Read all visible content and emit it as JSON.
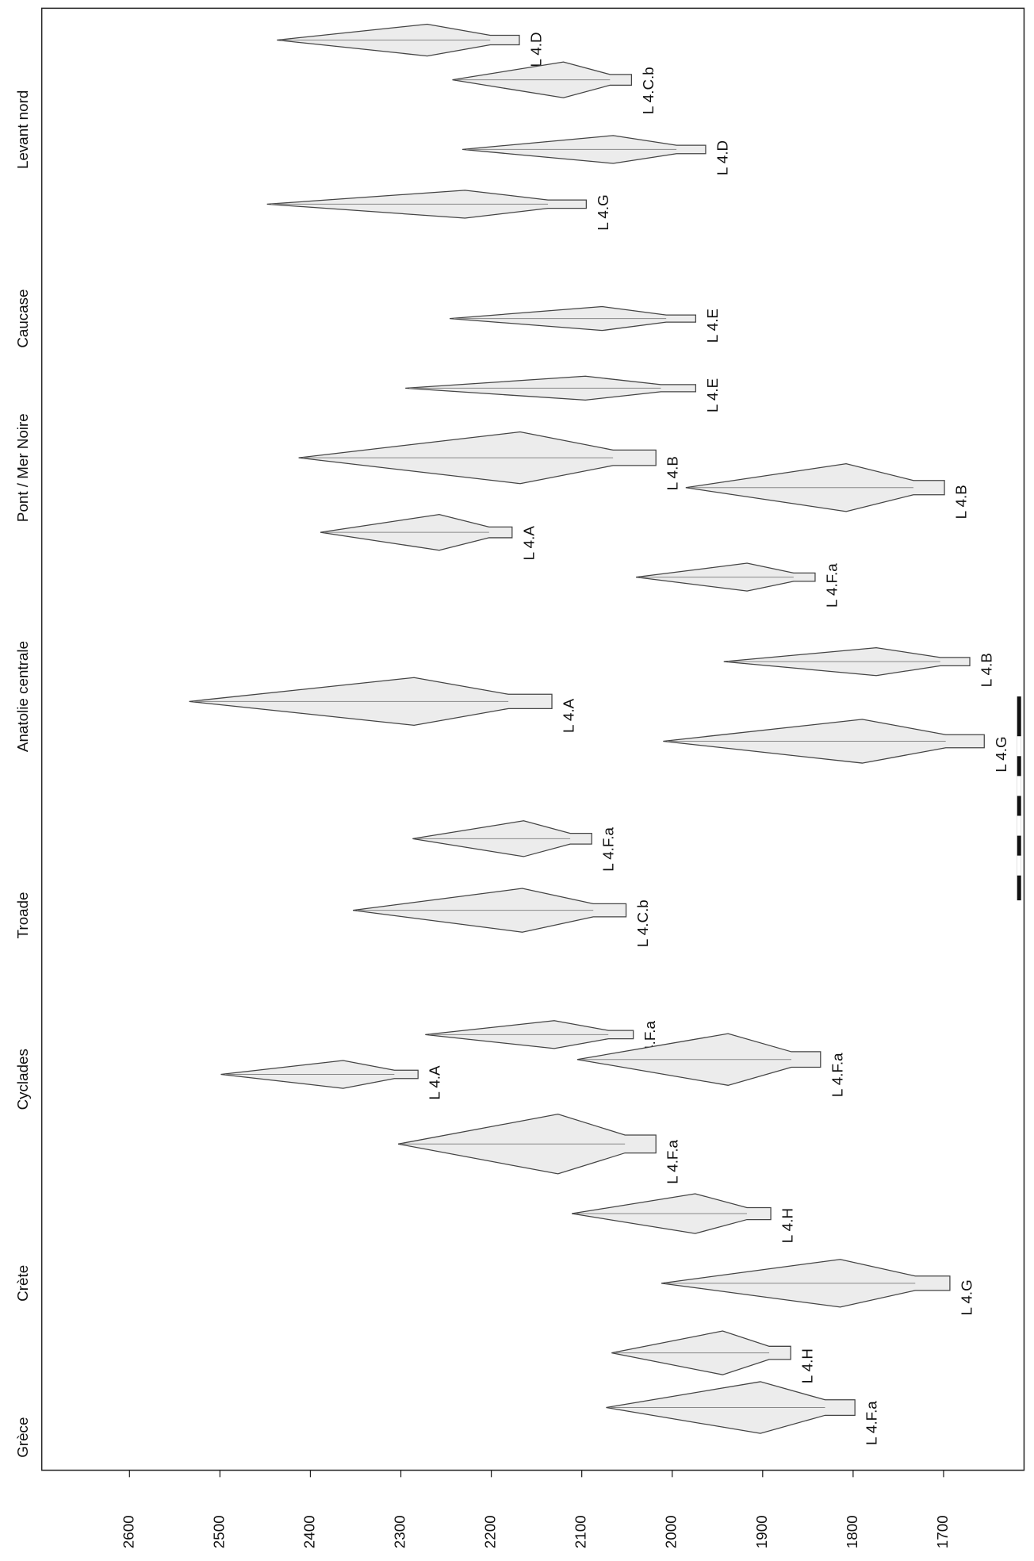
{
  "chart_data": {
    "type": "timeline",
    "xlim": [
      2697,
      1611
    ],
    "xticks": [
      2600,
      2500,
      2400,
      2300,
      2200,
      2100,
      2000,
      1900,
      1800,
      1700
    ],
    "regions": [
      {
        "name": "Levant nord",
        "items": [
          {
            "label": "L 4.D",
            "start": 2437,
            "end": 2169
          },
          {
            "label": "L 4.C.b",
            "start": 2243,
            "end": 2045
          },
          {
            "label": "L 4.D",
            "start": 2232,
            "end": 1963
          },
          {
            "label": "L 4.G",
            "start": 2448,
            "end": 2095
          }
        ]
      },
      {
        "name": "Caucase",
        "items": [
          {
            "label": "L 4.E",
            "start": 2246,
            "end": 1974
          },
          {
            "label": "L 4.E",
            "start": 2295,
            "end": 1974
          }
        ]
      },
      {
        "name": "Pont / Mer Noire",
        "items": [
          {
            "label": "L 4.B",
            "start": 2413,
            "end": 2018
          },
          {
            "label": "L 4.B",
            "start": 1985,
            "end": 1699
          },
          {
            "label": "L 4.A",
            "start": 2389,
            "end": 2177
          },
          {
            "label": "L 4.F.a",
            "start": 2040,
            "end": 1842
          }
        ]
      },
      {
        "name": "Anatolie centrale",
        "items": [
          {
            "label": "L 4.B",
            "start": 1943,
            "end": 1671
          },
          {
            "label": "L 4.A",
            "start": 2534,
            "end": 2133
          },
          {
            "label": "L 4.G",
            "start": 2010,
            "end": 1655
          }
        ]
      },
      {
        "name": "Troade",
        "items": [
          {
            "label": "L 4.F.a",
            "start": 2287,
            "end": 2089
          },
          {
            "label": "L 4.C.b",
            "start": 2353,
            "end": 2051
          }
        ]
      },
      {
        "name": "Cyclades",
        "items": [
          {
            "label": "L 4.F.a",
            "start": 2273,
            "end": 2043
          },
          {
            "label": "L 4.F.a",
            "start": 2105,
            "end": 1836
          },
          {
            "label": "L 4.A",
            "start": 2499,
            "end": 2281
          },
          {
            "label": "L 4.F.a",
            "start": 2303,
            "end": 2018
          }
        ]
      },
      {
        "name": "Crète",
        "items": [
          {
            "label": "L 4.H",
            "start": 2111,
            "end": 1891
          },
          {
            "label": "L 4.G",
            "start": 2012,
            "end": 1693
          }
        ]
      },
      {
        "name": "Grèce",
        "items": [
          {
            "label": "L 4.H",
            "start": 2067,
            "end": 1869
          },
          {
            "label": "L 4.F.a",
            "start": 2073,
            "end": 1798
          }
        ]
      }
    ]
  }
}
